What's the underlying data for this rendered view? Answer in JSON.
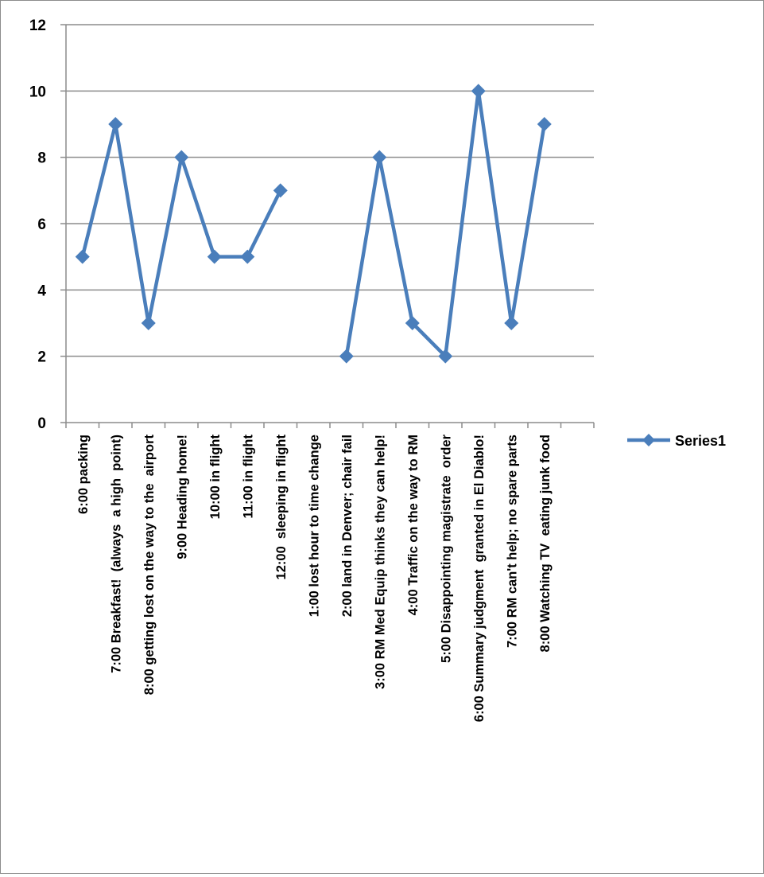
{
  "chart_data": {
    "type": "line",
    "title": "",
    "xlabel": "",
    "ylabel": "",
    "ylim": [
      0,
      12
    ],
    "yticks": [
      0,
      2,
      4,
      6,
      8,
      10,
      12
    ],
    "grid": true,
    "legend_position": "right",
    "categories": [
      "6:00 packing",
      "7:00 Breakfast!  (always  a high  point)",
      "8:00 getting lost on the way to the  airport",
      "9:00 Heading home!",
      "10:00 in flight",
      "11:00 in flight",
      "12:00  sleeping in flight",
      "1:00 lost hour to time change",
      "2:00 land in Denver; chair fail",
      "3:00 RM Med Equip thinks they can help!",
      "4:00 Traffic on the way to RM",
      "5:00 Disappointing magistrate  order",
      "6:00 Summary judgment  granted in El Diablo!",
      "7:00 RM can't help; no spare parts",
      "8:00 Watching TV  eating junk food",
      ""
    ],
    "series": [
      {
        "name": "Series1",
        "color": "#4a7ebb",
        "values": [
          5,
          9,
          3,
          8,
          5,
          5,
          7,
          null,
          2,
          8,
          3,
          2,
          10,
          3,
          9,
          null
        ]
      }
    ]
  }
}
